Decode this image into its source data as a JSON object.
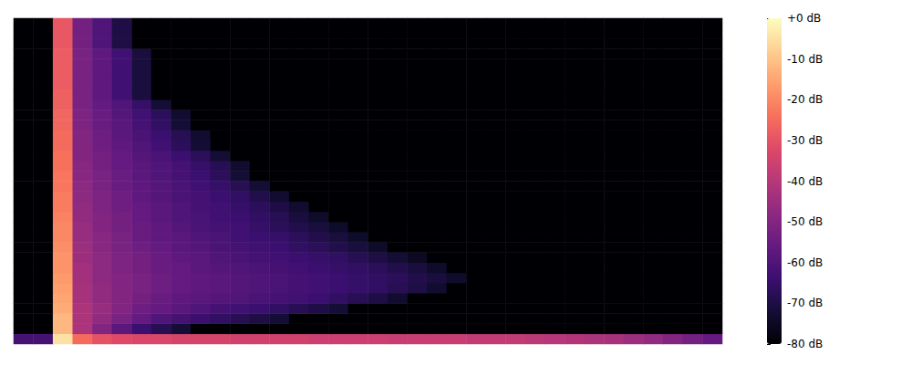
{
  "chart_data": {
    "type": "heatmap",
    "tick_labels": false,
    "cells": [
      [
        -62,
        -62,
        -5,
        -25,
        -30,
        -32,
        -33,
        -33,
        -34,
        -34,
        -34,
        -35,
        -35,
        -35,
        -35,
        -36,
        -36,
        -36,
        -36,
        -37,
        -37,
        -37,
        -37,
        -38,
        -38,
        -38,
        -39,
        -40,
        -41,
        -42,
        -43,
        -45,
        -47,
        -50,
        -53,
        -56
      ],
      [
        -80,
        -80,
        -12,
        -42,
        -50,
        -58,
        -64,
        -68,
        -72,
        -80,
        -80,
        -80,
        -80,
        -80,
        -80,
        -80,
        -80,
        -80,
        -80,
        -80,
        -80,
        -80,
        -80,
        -80,
        -80,
        -80,
        -80,
        -80,
        -80,
        -80,
        -80,
        -80,
        -80,
        -80,
        -80,
        -80
      ],
      [
        -80,
        -80,
        -12,
        -42,
        -47,
        -52,
        -56,
        -60,
        -62,
        -64,
        -66,
        -68,
        -70,
        -72,
        -80,
        -80,
        -80,
        -80,
        -80,
        -80,
        -80,
        -80,
        -80,
        -80,
        -80,
        -80,
        -80,
        -80,
        -80,
        -80,
        -80,
        -80,
        -80,
        -80,
        -80,
        -80
      ],
      [
        -80,
        -80,
        -14,
        -42,
        -46,
        -50,
        -54,
        -56,
        -58,
        -60,
        -62,
        -63,
        -64,
        -66,
        -68,
        -70,
        -72,
        -80,
        -80,
        -80,
        -80,
        -80,
        -80,
        -80,
        -80,
        -80,
        -80,
        -80,
        -80,
        -80,
        -80,
        -80,
        -80,
        -80,
        -80,
        -80
      ],
      [
        -80,
        -80,
        -15,
        -43,
        -47,
        -50,
        -53,
        -55,
        -57,
        -58,
        -59,
        -60,
        -61,
        -62,
        -63,
        -64,
        -66,
        -68,
        -70,
        -73,
        -80,
        -80,
        -80,
        -80,
        -80,
        -80,
        -80,
        -80,
        -80,
        -80,
        -80,
        -80,
        -80,
        -80,
        -80,
        -80
      ],
      [
        -80,
        -80,
        -16,
        -43,
        -47,
        -50,
        -52,
        -54,
        -56,
        -57,
        -58,
        -59,
        -60,
        -61,
        -62,
        -63,
        -64,
        -65,
        -66,
        -68,
        -70,
        -73,
        -80,
        -80,
        -80,
        -80,
        -80,
        -80,
        -80,
        -80,
        -80,
        -80,
        -80,
        -80,
        -80,
        -80
      ],
      [
        -80,
        -80,
        -17,
        -44,
        -48,
        -50,
        -52,
        -54,
        -56,
        -57,
        -58,
        -59,
        -60,
        -61,
        -62,
        -63,
        -64,
        -65,
        -66,
        -67,
        -69,
        -71,
        -74,
        -80,
        -80,
        -80,
        -80,
        -80,
        -80,
        -80,
        -80,
        -80,
        -80,
        -80,
        -80,
        -80
      ],
      [
        -80,
        -80,
        -18,
        -44,
        -48,
        -51,
        -53,
        -55,
        -56,
        -58,
        -59,
        -60,
        -61,
        -62,
        -63,
        -64,
        -65,
        -66,
        -67,
        -69,
        -71,
        -74,
        -80,
        -80,
        -80,
        -80,
        -80,
        -80,
        -80,
        -80,
        -80,
        -80,
        -80,
        -80,
        -80,
        -80
      ],
      [
        -80,
        -80,
        -18,
        -45,
        -48,
        -51,
        -53,
        -55,
        -57,
        -58,
        -60,
        -61,
        -62,
        -63,
        -64,
        -65,
        -66,
        -68,
        -70,
        -72,
        -75,
        -80,
        -80,
        -80,
        -80,
        -80,
        -80,
        -80,
        -80,
        -80,
        -80,
        -80,
        -80,
        -80,
        -80,
        -80
      ],
      [
        -80,
        -80,
        -19,
        -45,
        -49,
        -52,
        -54,
        -56,
        -58,
        -59,
        -61,
        -62,
        -63,
        -64,
        -66,
        -67,
        -69,
        -71,
        -74,
        -80,
        -80,
        -80,
        -80,
        -80,
        -80,
        -80,
        -80,
        -80,
        -80,
        -80,
        -80,
        -80,
        -80,
        -80,
        -80,
        -80
      ],
      [
        -80,
        -80,
        -20,
        -46,
        -49,
        -52,
        -55,
        -57,
        -58,
        -60,
        -61,
        -63,
        -64,
        -65,
        -67,
        -69,
        -71,
        -74,
        -80,
        -80,
        -80,
        -80,
        -80,
        -80,
        -80,
        -80,
        -80,
        -80,
        -80,
        -80,
        -80,
        -80,
        -80,
        -80,
        -80,
        -80
      ],
      [
        -80,
        -80,
        -20,
        -46,
        -50,
        -53,
        -55,
        -57,
        -59,
        -61,
        -62,
        -63,
        -65,
        -67,
        -69,
        -71,
        -74,
        -80,
        -80,
        -80,
        -80,
        -80,
        -80,
        -80,
        -80,
        -80,
        -80,
        -80,
        -80,
        -80,
        -80,
        -80,
        -80,
        -80,
        -80,
        -80
      ],
      [
        -80,
        -80,
        -21,
        -47,
        -50,
        -53,
        -56,
        -58,
        -60,
        -61,
        -63,
        -64,
        -66,
        -68,
        -71,
        -74,
        -80,
        -80,
        -80,
        -80,
        -80,
        -80,
        -80,
        -80,
        -80,
        -80,
        -80,
        -80,
        -80,
        -80,
        -80,
        -80,
        -80,
        -80,
        -80,
        -80
      ],
      [
        -80,
        -80,
        -22,
        -47,
        -51,
        -54,
        -56,
        -58,
        -60,
        -62,
        -63,
        -65,
        -67,
        -70,
        -73,
        -80,
        -80,
        -80,
        -80,
        -80,
        -80,
        -80,
        -80,
        -80,
        -80,
        -80,
        -80,
        -80,
        -80,
        -80,
        -80,
        -80,
        -80,
        -80,
        -80,
        -80
      ],
      [
        -80,
        -80,
        -22,
        -48,
        -51,
        -54,
        -57,
        -59,
        -61,
        -62,
        -64,
        -66,
        -69,
        -73,
        -80,
        -80,
        -80,
        -80,
        -80,
        -80,
        -80,
        -80,
        -80,
        -80,
        -80,
        -80,
        -80,
        -80,
        -80,
        -80,
        -80,
        -80,
        -80,
        -80,
        -80,
        -80
      ],
      [
        -80,
        -80,
        -23,
        -48,
        -52,
        -55,
        -57,
        -59,
        -61,
        -63,
        -65,
        -68,
        -72,
        -80,
        -80,
        -80,
        -80,
        -80,
        -80,
        -80,
        -80,
        -80,
        -80,
        -80,
        -80,
        -80,
        -80,
        -80,
        -80,
        -80,
        -80,
        -80,
        -80,
        -80,
        -80,
        -80
      ],
      [
        -80,
        -80,
        -23,
        -49,
        -52,
        -55,
        -58,
        -60,
        -62,
        -64,
        -67,
        -72,
        -80,
        -80,
        -80,
        -80,
        -80,
        -80,
        -80,
        -80,
        -80,
        -80,
        -80,
        -80,
        -80,
        -80,
        -80,
        -80,
        -80,
        -80,
        -80,
        -80,
        -80,
        -80,
        -80,
        -80
      ],
      [
        -80,
        -80,
        -24,
        -49,
        -53,
        -56,
        -58,
        -60,
        -62,
        -65,
        -68,
        -73,
        -80,
        -80,
        -80,
        -80,
        -80,
        -80,
        -80,
        -80,
        -80,
        -80,
        -80,
        -80,
        -80,
        -80,
        -80,
        -80,
        -80,
        -80,
        -80,
        -80,
        -80,
        -80,
        -80,
        -80
      ],
      [
        -80,
        -80,
        -24,
        -50,
        -53,
        -56,
        -59,
        -61,
        -64,
        -67,
        -72,
        -80,
        -80,
        -80,
        -80,
        -80,
        -80,
        -80,
        -80,
        -80,
        -80,
        -80,
        -80,
        -80,
        -80,
        -80,
        -80,
        -80,
        -80,
        -80,
        -80,
        -80,
        -80,
        -80,
        -80,
        -80
      ],
      [
        -80,
        -80,
        -25,
        -50,
        -54,
        -57,
        -60,
        -63,
        -67,
        -72,
        -80,
        -80,
        -80,
        -80,
        -80,
        -80,
        -80,
        -80,
        -80,
        -80,
        -80,
        -80,
        -80,
        -80,
        -80,
        -80,
        -80,
        -80,
        -80,
        -80,
        -80,
        -80,
        -80,
        -80,
        -80,
        -80
      ],
      [
        -80,
        -80,
        -25,
        -50,
        -54,
        -58,
        -61,
        -64,
        -68,
        -73,
        -80,
        -80,
        -80,
        -80,
        -80,
        -80,
        -80,
        -80,
        -80,
        -80,
        -80,
        -80,
        -80,
        -80,
        -80,
        -80,
        -80,
        -80,
        -80,
        -80,
        -80,
        -80,
        -80,
        -80,
        -80,
        -80
      ],
      [
        -80,
        -80,
        -26,
        -51,
        -55,
        -58,
        -62,
        -66,
        -72,
        -80,
        -80,
        -80,
        -80,
        -80,
        -80,
        -80,
        -80,
        -80,
        -80,
        -80,
        -80,
        -80,
        -80,
        -80,
        -80,
        -80,
        -80,
        -80,
        -80,
        -80,
        -80,
        -80,
        -80,
        -80,
        -80,
        -80
      ],
      [
        -80,
        -80,
        -26,
        -51,
        -55,
        -59,
        -63,
        -67,
        -73,
        -80,
        -80,
        -80,
        -80,
        -80,
        -80,
        -80,
        -80,
        -80,
        -80,
        -80,
        -80,
        -80,
        -80,
        -80,
        -80,
        -80,
        -80,
        -80,
        -80,
        -80,
        -80,
        -80,
        -80,
        -80,
        -80,
        -80
      ],
      [
        -80,
        -80,
        -27,
        -52,
        -56,
        -60,
        -65,
        -72,
        -80,
        -80,
        -80,
        -80,
        -80,
        -80,
        -80,
        -80,
        -80,
        -80,
        -80,
        -80,
        -80,
        -80,
        -80,
        -80,
        -80,
        -80,
        -80,
        -80,
        -80,
        -80,
        -80,
        -80,
        -80,
        -80,
        -80,
        -80
      ],
      [
        -80,
        -80,
        -27,
        -52,
        -57,
        -63,
        -71,
        -80,
        -80,
        -80,
        -80,
        -80,
        -80,
        -80,
        -80,
        -80,
        -80,
        -80,
        -80,
        -80,
        -80,
        -80,
        -80,
        -80,
        -80,
        -80,
        -80,
        -80,
        -80,
        -80,
        -80,
        -80,
        -80,
        -80,
        -80,
        -80
      ],
      [
        -80,
        -80,
        -28,
        -52,
        -57,
        -63,
        -71,
        -80,
        -80,
        -80,
        -80,
        -80,
        -80,
        -80,
        -80,
        -80,
        -80,
        -80,
        -80,
        -80,
        -80,
        -80,
        -80,
        -80,
        -80,
        -80,
        -80,
        -80,
        -80,
        -80,
        -80,
        -80,
        -80,
        -80,
        -80,
        -80
      ],
      [
        -80,
        -80,
        -28,
        -52,
        -57,
        -63,
        -71,
        -80,
        -80,
        -80,
        -80,
        -80,
        -80,
        -80,
        -80,
        -80,
        -80,
        -80,
        -80,
        -80,
        -80,
        -80,
        -80,
        -80,
        -80,
        -80,
        -80,
        -80,
        -80,
        -80,
        -80,
        -80,
        -80,
        -80,
        -80,
        -80
      ],
      [
        -80,
        -80,
        -28,
        -52,
        -57,
        -63,
        -71,
        -80,
        -80,
        -80,
        -80,
        -80,
        -80,
        -80,
        -80,
        -80,
        -80,
        -80,
        -80,
        -80,
        -80,
        -80,
        -80,
        -80,
        -80,
        -80,
        -80,
        -80,
        -80,
        -80,
        -80,
        -80,
        -80,
        -80,
        -80,
        -80
      ],
      [
        -80,
        -80,
        -28,
        -52,
        -57,
        -63,
        -71,
        -80,
        -80,
        -80,
        -80,
        -80,
        -80,
        -80,
        -80,
        -80,
        -80,
        -80,
        -80,
        -80,
        -80,
        -80,
        -80,
        -80,
        -80,
        -80,
        -80,
        -80,
        -80,
        -80,
        -80,
        -80,
        -80,
        -80,
        -80,
        -80
      ],
      [
        -80,
        -80,
        -29,
        -53,
        -60,
        -70,
        -80,
        -80,
        -80,
        -80,
        -80,
        -80,
        -80,
        -80,
        -80,
        -80,
        -80,
        -80,
        -80,
        -80,
        -80,
        -80,
        -80,
        -80,
        -80,
        -80,
        -80,
        -80,
        -80,
        -80,
        -80,
        -80,
        -80,
        -80,
        -80,
        -80
      ],
      [
        -80,
        -80,
        -29,
        -53,
        -60,
        -70,
        -80,
        -80,
        -80,
        -80,
        -80,
        -80,
        -80,
        -80,
        -80,
        -80,
        -80,
        -80,
        -80,
        -80,
        -80,
        -80,
        -80,
        -80,
        -80,
        -80,
        -80,
        -80,
        -80,
        -80,
        -80,
        -80,
        -80,
        -80,
        -80,
        -80
      ],
      [
        -80,
        -80,
        -29,
        -53,
        -60,
        -70,
        -80,
        -80,
        -80,
        -80,
        -80,
        -80,
        -80,
        -80,
        -80,
        -80,
        -80,
        -80,
        -80,
        -80,
        -80,
        -80,
        -80,
        -80,
        -80,
        -80,
        -80,
        -80,
        -80,
        -80,
        -80,
        -80,
        -80,
        -80,
        -80,
        -80
      ]
    ],
    "colorbar": {
      "range": [
        -80,
        0
      ],
      "ticks": [
        {
          "value": -80,
          "label": "-80 dB"
        },
        {
          "value": -70,
          "label": "-70 dB"
        },
        {
          "value": -60,
          "label": "-60 dB"
        },
        {
          "value": -50,
          "label": "-50 dB"
        },
        {
          "value": -40,
          "label": "-40 dB"
        },
        {
          "value": -30,
          "label": "-30 dB"
        },
        {
          "value": -20,
          "label": "-20 dB"
        },
        {
          "value": -10,
          "label": "-10 dB"
        },
        {
          "value": 0,
          "label": "+0 dB"
        }
      ]
    }
  }
}
